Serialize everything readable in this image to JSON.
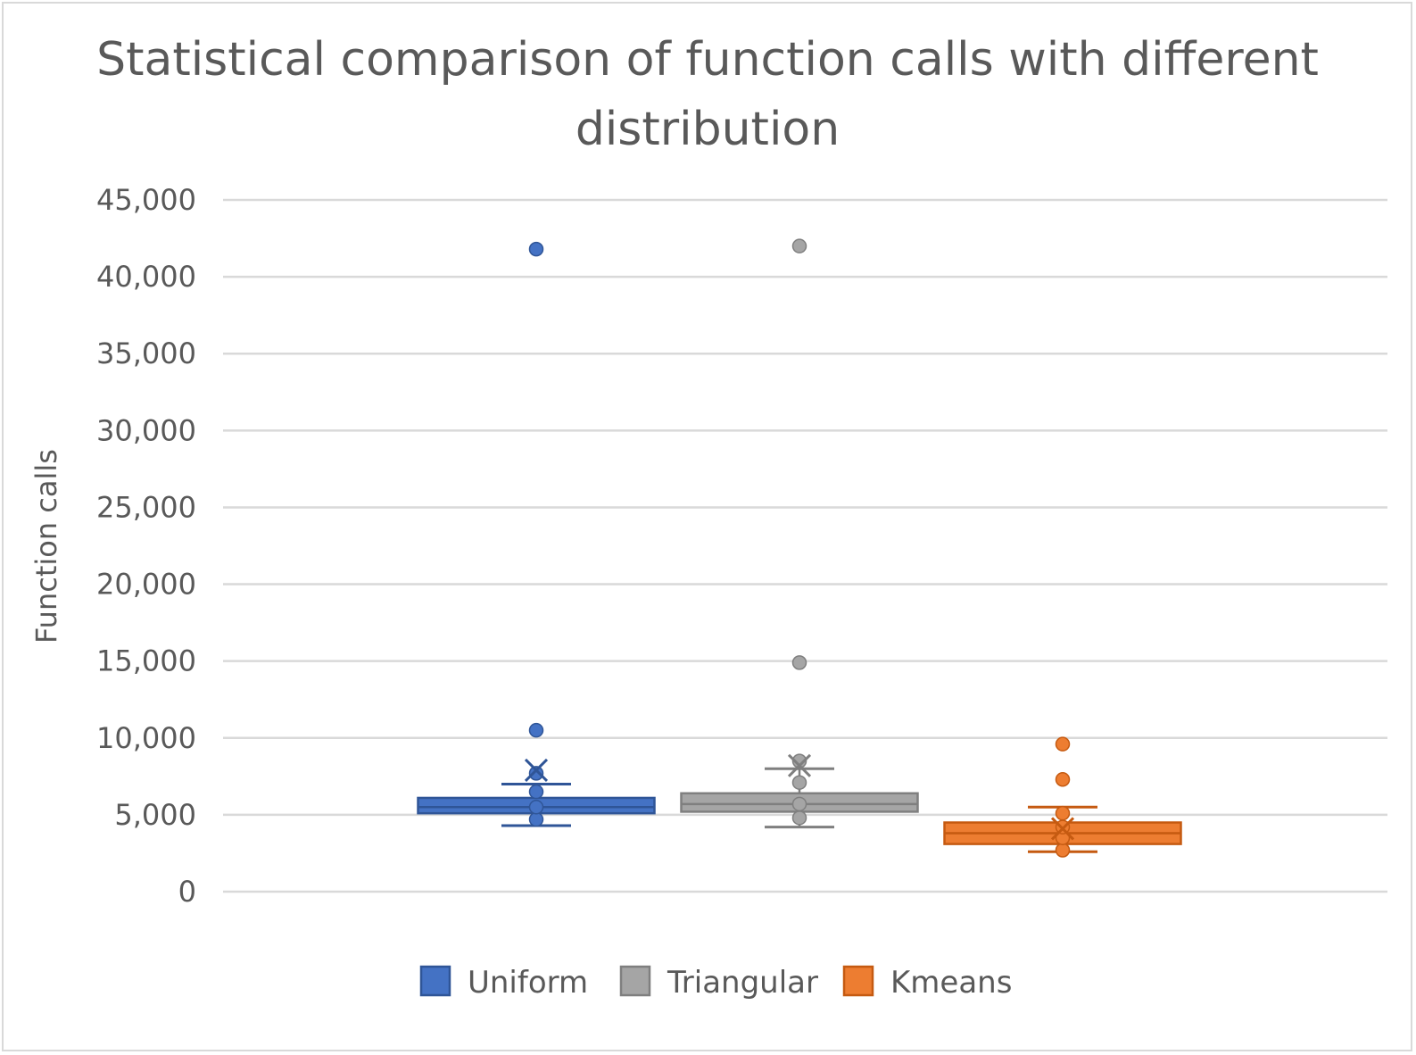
{
  "chart_data": {
    "type": "box",
    "title": "Statistical comparison of function calls with different distribution",
    "title_lines": [
      "Statistical comparison of function calls with different",
      "distribution"
    ],
    "xlabel": "",
    "ylabel": "Function calls",
    "ylim": [
      0,
      45000
    ],
    "yticks": [
      0,
      5000,
      10000,
      15000,
      20000,
      25000,
      30000,
      35000,
      40000,
      45000
    ],
    "ytick_labels": [
      "0",
      "5,000",
      "10,000",
      "15,000",
      "20,000",
      "25,000",
      "30,000",
      "35,000",
      "40,000",
      "45,000"
    ],
    "grid": true,
    "legend_position": "bottom",
    "series": [
      {
        "name": "Uniform",
        "color": "#4472c4",
        "stroke": "#2f5597",
        "whisker_low": 4300,
        "q1": 5100,
        "median": 5500,
        "q3": 6100,
        "whisker_high": 7000,
        "mean": 7900,
        "points": [
          4700,
          5500,
          6500,
          7700,
          10500,
          41800
        ]
      },
      {
        "name": "Triangular",
        "color": "#a5a5a5",
        "stroke": "#7f7f7f",
        "whisker_low": 4200,
        "q1": 5200,
        "median": 5700,
        "q3": 6400,
        "whisker_high": 8000,
        "mean": 8200,
        "points": [
          4800,
          5700,
          7100,
          8500,
          14900,
          42000
        ]
      },
      {
        "name": "Kmeans",
        "color": "#ed7d31",
        "stroke": "#c55a11",
        "whisker_low": 2600,
        "q1": 3100,
        "median": 3800,
        "q3": 4500,
        "whisker_high": 5500,
        "mean": 4100,
        "points": [
          2700,
          3500,
          4200,
          5100,
          7300,
          9600
        ]
      }
    ]
  }
}
